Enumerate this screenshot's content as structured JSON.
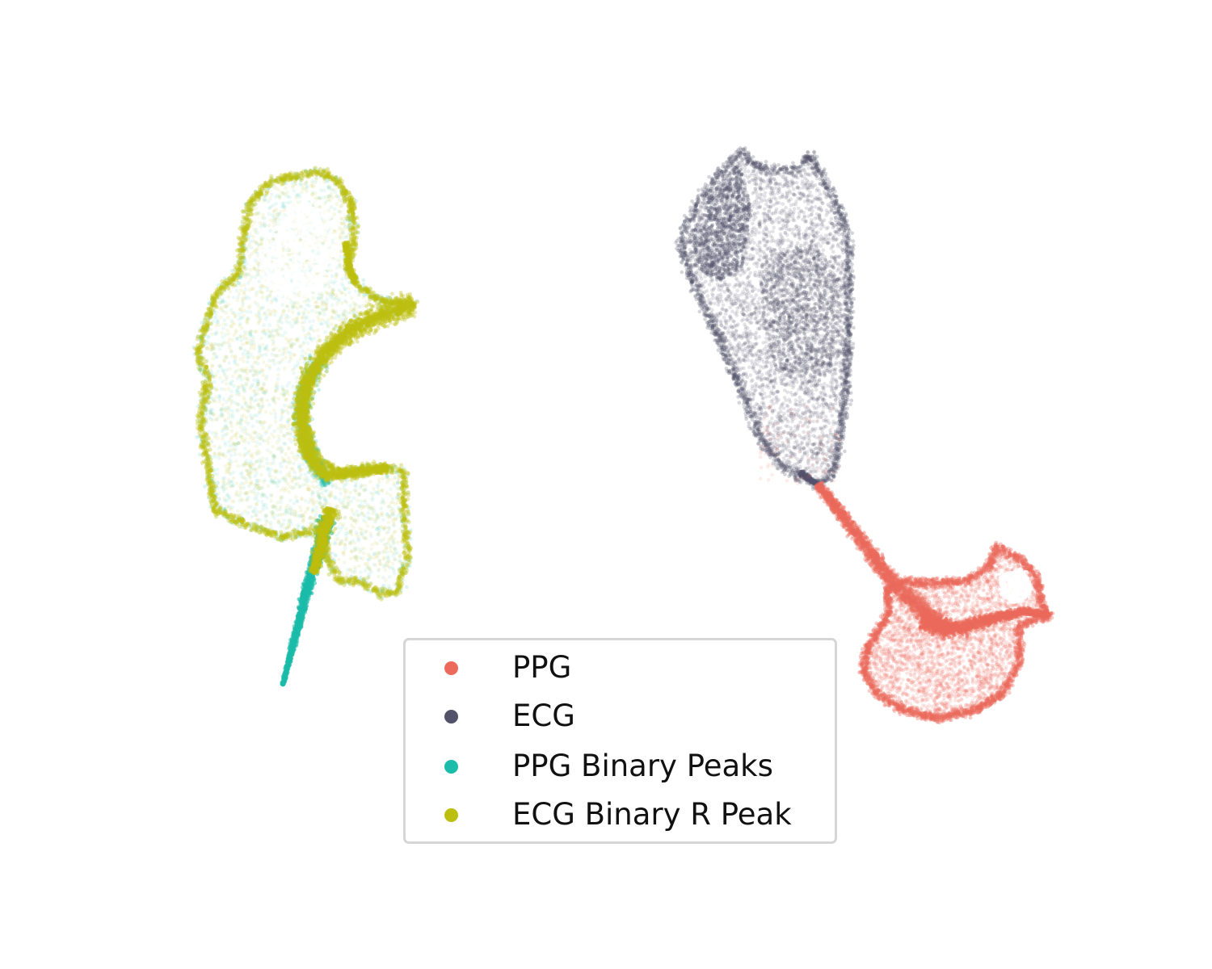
{
  "chart_data": {
    "type": "scatter",
    "title": "",
    "xlabel": "",
    "ylabel": "",
    "axes_visible": false,
    "grid": false,
    "legend_position": "lower-center",
    "series": [
      {
        "name": "PPG",
        "color": "#ec6a5c",
        "cluster": "right-lower",
        "shape": "red flared blob with tail toward upper-left"
      },
      {
        "name": "ECG",
        "color": "#54526b",
        "cluster": "right-upper",
        "shape": "dark shield-shaped cloud"
      },
      {
        "name": "PPG Binary Peaks",
        "color": "#1cbcaa",
        "cluster": "left",
        "shape": "S-shaped teal/green cloud with lower tail"
      },
      {
        "name": "ECG Binary R Peak",
        "color": "#bdbf10",
        "cluster": "left",
        "shape": "olive cloud overlapping the PPG Binary Peaks cloud"
      }
    ]
  },
  "legend": {
    "entries": [
      {
        "label": "PPG",
        "color": "#ec6a5c"
      },
      {
        "label": "ECG",
        "color": "#54526b"
      },
      {
        "label": "PPG Binary Peaks",
        "color": "#1cbcaa"
      },
      {
        "label": "ECG Binary R Peak",
        "color": "#bdbf10"
      }
    ]
  }
}
